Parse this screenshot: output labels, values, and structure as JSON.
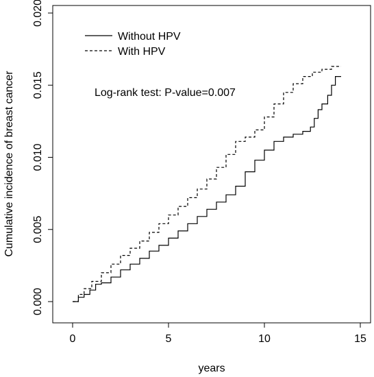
{
  "chart_data": {
    "type": "line",
    "xlabel": "years",
    "ylabel": "Cumulative incidence of breast cancer",
    "xlim": [
      0,
      15
    ],
    "ylim": [
      0,
      0.02
    ],
    "x_ticks": [
      "0",
      "5",
      "10",
      "15"
    ],
    "y_ticks": [
      "0.000",
      "0.005",
      "0.010",
      "0.015",
      "0.020"
    ],
    "grid": false,
    "legend_position": "top-left",
    "annotation": "Log-rank test: P-value=0.007",
    "series": [
      {
        "name": "Without HPV",
        "line_style": "solid",
        "x": [
          0,
          0.3,
          0.6,
          0.9,
          1.2,
          1.5,
          2.0,
          2.5,
          3.0,
          3.5,
          4.0,
          4.5,
          5.0,
          5.5,
          6.0,
          6.5,
          7.0,
          7.5,
          8.0,
          8.5,
          9.0,
          9.5,
          10.0,
          10.5,
          11.0,
          11.5,
          12.0,
          12.4,
          12.6,
          12.8,
          13.0,
          13.3,
          13.5,
          13.7,
          14.0
        ],
        "y": [
          0,
          0.0003,
          0.0005,
          0.0008,
          0.0012,
          0.0013,
          0.0017,
          0.0022,
          0.0026,
          0.003,
          0.0035,
          0.0039,
          0.0044,
          0.0049,
          0.0054,
          0.0059,
          0.0064,
          0.0069,
          0.0074,
          0.008,
          0.009,
          0.0098,
          0.0105,
          0.0111,
          0.0114,
          0.0116,
          0.0118,
          0.0121,
          0.0127,
          0.0133,
          0.0137,
          0.0143,
          0.015,
          0.0156,
          0.0156
        ]
      },
      {
        "name": "With HPV",
        "line_style": "dashed",
        "x": [
          0,
          0.3,
          0.6,
          1.0,
          1.5,
          2.0,
          2.5,
          3.0,
          3.5,
          4.0,
          4.5,
          5.0,
          5.5,
          6.0,
          6.5,
          7.0,
          7.5,
          8.0,
          8.5,
          9.0,
          9.5,
          10.0,
          10.5,
          11.0,
          11.5,
          12.0,
          12.5,
          13.0,
          13.5,
          14.0
        ],
        "y": [
          0,
          0.0005,
          0.0009,
          0.0014,
          0.002,
          0.0026,
          0.0032,
          0.0037,
          0.0042,
          0.0048,
          0.0054,
          0.006,
          0.0066,
          0.0072,
          0.0078,
          0.0085,
          0.0093,
          0.0102,
          0.0111,
          0.0114,
          0.0119,
          0.0128,
          0.0137,
          0.0145,
          0.0151,
          0.0156,
          0.0159,
          0.0161,
          0.0163,
          0.0163
        ]
      }
    ]
  }
}
